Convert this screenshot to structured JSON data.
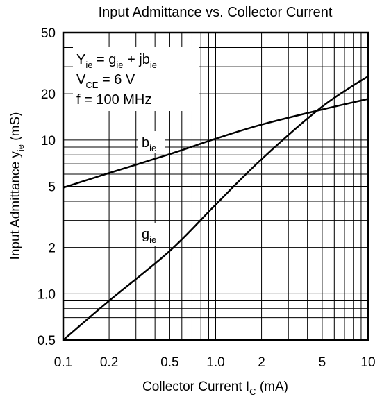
{
  "chart_data": {
    "type": "line",
    "title": "Input Admittance vs. Collector Current",
    "xlabel": {
      "main": "Collector Current  I",
      "sub": "C",
      "unit": "  (mA)"
    },
    "ylabel": {
      "main": "Input Admittance  y",
      "sub": "ie",
      "unit": "  (mS)"
    },
    "x_scale": "log",
    "y_scale": "log",
    "xlim": [
      0.1,
      10
    ],
    "ylim": [
      0.5,
      50
    ],
    "grid": true,
    "x_ticks": [
      {
        "value": 0.1,
        "label": "0.1"
      },
      {
        "value": 0.2,
        "label": "0.2"
      },
      {
        "value": 0.5,
        "label": "0.5"
      },
      {
        "value": 1,
        "label": "1.0"
      },
      {
        "value": 2,
        "label": "2"
      },
      {
        "value": 5,
        "label": "5"
      },
      {
        "value": 10,
        "label": "10"
      }
    ],
    "y_ticks": [
      {
        "value": 0.5,
        "label": "0.5"
      },
      {
        "value": 1,
        "label": "1.0"
      },
      {
        "value": 2,
        "label": "2"
      },
      {
        "value": 5,
        "label": "5"
      },
      {
        "value": 10,
        "label": "10"
      },
      {
        "value": 20,
        "label": "20"
      },
      {
        "value": 50,
        "label": "50"
      }
    ],
    "series": [
      {
        "name": "b",
        "name_sub": "ie",
        "x": [
          0.1,
          0.2,
          0.5,
          1,
          2,
          5,
          10
        ],
        "y": [
          4.9,
          6.1,
          8.1,
          10.2,
          12.6,
          15.8,
          18.5
        ]
      },
      {
        "name": "g",
        "name_sub": "ie",
        "x": [
          0.1,
          0.2,
          0.5,
          1,
          2,
          5,
          10
        ],
        "y": [
          0.5,
          0.9,
          1.9,
          3.8,
          7.5,
          16.5,
          26
        ]
      }
    ],
    "annotation": [
      {
        "main": "Y",
        "sub": "ie",
        "rest": " = g",
        "sub2": "ie",
        "rest2": " + jb",
        "sub3": "ie"
      },
      {
        "main": "V",
        "sub": "CE",
        "rest": " = 6 V"
      },
      {
        "main": "f = 100 MHz"
      }
    ]
  }
}
